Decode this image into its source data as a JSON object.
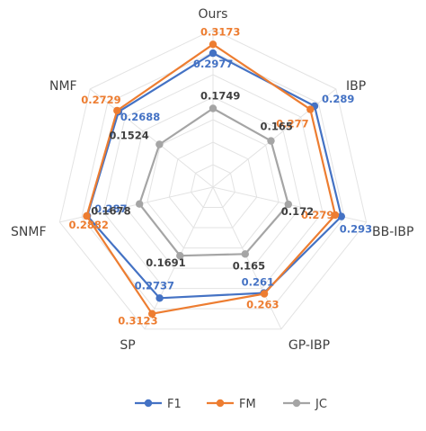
{
  "chart_data": {
    "type": "radar",
    "axes": [
      "Ours",
      "IBP",
      "BB-IBP",
      "GP-IBP",
      "SP",
      "SNMF",
      "NMF"
    ],
    "series": [
      {
        "name": "F1",
        "values": [
          0.2977,
          0.289,
          0.293,
          0.261,
          0.2737,
          0.287,
          0.2688
        ],
        "labels": [
          "0.2977",
          "0.289",
          "0.293",
          "0.261",
          "0.2737",
          "0.287",
          "0.2688"
        ],
        "color": "#4472C4"
      },
      {
        "name": "FM",
        "values": [
          0.3173,
          0.277,
          0.279,
          0.263,
          0.3123,
          0.2882,
          0.2729
        ],
        "labels": [
          "0.3173",
          "0.277",
          "0.279",
          "0.263",
          "0.3123",
          "0.2882",
          "0.2729"
        ],
        "color": "#ED7D31"
      },
      {
        "name": "JC",
        "values": [
          0.1749,
          0.165,
          0.172,
          0.165,
          0.1691,
          0.1678,
          0.1524
        ],
        "labels": [
          "0.1749",
          "0.165",
          "0.172",
          "0.165",
          "0.1691",
          "0.1678",
          "0.1524"
        ],
        "color": "#A5A5A5"
      }
    ],
    "range": [
      0,
      0.35
    ],
    "grid": true,
    "grid_color": "#E3E3E3",
    "legend_position": "bottom"
  }
}
